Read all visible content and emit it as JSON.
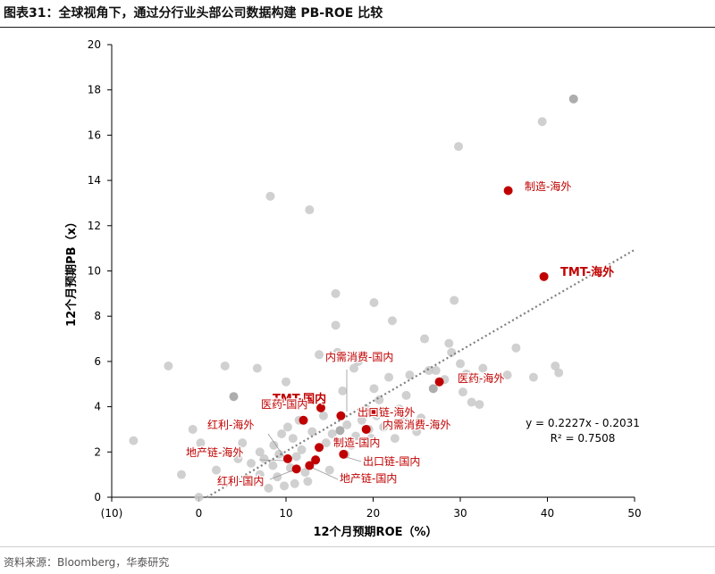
{
  "header": {
    "title": "图表31：全球视角下，通过分行业头部公司数据构建 PB-ROE 比较"
  },
  "footer": {
    "source": "资料来源：Bloomberg，华泰研究"
  },
  "colors": {
    "highlight": "#c00000",
    "background_point": "#c8c8c8",
    "background_point_dark": "#9f9f9f",
    "trendline": "#7f7f7f"
  },
  "chart_data": {
    "type": "scatter",
    "xlabel": "12个月预期ROE（%）",
    "ylabel": "12个月预期PB（x）",
    "xlim": [
      -10,
      50
    ],
    "ylim": [
      0,
      20
    ],
    "x_ticks": [
      -10,
      0,
      10,
      20,
      30,
      40,
      50
    ],
    "x_tick_labels": [
      "(10)",
      "0",
      "10",
      "20",
      "30",
      "40",
      "50"
    ],
    "y_ticks": [
      0,
      2,
      4,
      6,
      8,
      10,
      12,
      14,
      16,
      18,
      20
    ],
    "y_tick_labels": [
      "0",
      "2",
      "4",
      "6",
      "8",
      "10",
      "12",
      "14",
      "16",
      "18",
      "20"
    ],
    "grid": false,
    "trendline": {
      "slope": 0.2227,
      "intercept": -0.2031,
      "equation": "y = 0.2227x - 0.2031",
      "r_squared": "R² = 0.7508"
    },
    "background_points": [
      [
        -7.5,
        2.5
      ],
      [
        -3.5,
        5.8
      ],
      [
        -2,
        1.0
      ],
      [
        -0.7,
        3.0
      ],
      [
        0,
        0.0
      ],
      [
        0.2,
        2.4
      ],
      [
        2.0,
        1.2
      ],
      [
        3.0,
        5.8
      ],
      [
        4.0,
        4.45
      ],
      [
        4.5,
        1.7
      ],
      [
        5.0,
        2.4
      ],
      [
        5.5,
        0.8
      ],
      [
        6.0,
        1.5
      ],
      [
        6.7,
        5.7
      ],
      [
        7.0,
        1.0
      ],
      [
        7.0,
        2.0
      ],
      [
        7.5,
        1.7
      ],
      [
        8.0,
        0.4
      ],
      [
        8.2,
        13.3
      ],
      [
        8.5,
        1.4
      ],
      [
        8.6,
        2.3
      ],
      [
        9.0,
        0.9
      ],
      [
        9.2,
        1.9
      ],
      [
        9.5,
        2.8
      ],
      [
        9.8,
        0.5
      ],
      [
        10.0,
        5.1
      ],
      [
        10.2,
        3.1
      ],
      [
        10.5,
        1.3
      ],
      [
        10.8,
        2.6
      ],
      [
        11.0,
        0.6
      ],
      [
        11.2,
        1.8
      ],
      [
        11.5,
        3.4
      ],
      [
        11.8,
        2.1
      ],
      [
        12.2,
        1.1
      ],
      [
        12.5,
        0.7
      ],
      [
        12.7,
        12.7
      ],
      [
        13.0,
        2.9
      ],
      [
        13.3,
        1.6
      ],
      [
        13.8,
        6.3
      ],
      [
        14.3,
        3.6
      ],
      [
        14.6,
        2.4
      ],
      [
        15.0,
        1.2
      ],
      [
        15.3,
        2.8
      ],
      [
        15.7,
        7.6
      ],
      [
        15.7,
        9.0
      ],
      [
        15.9,
        6.4
      ],
      [
        16.2,
        2.95
      ],
      [
        16.5,
        4.7
      ],
      [
        16.8,
        1.9
      ],
      [
        17.0,
        3.2
      ],
      [
        17.5,
        2.3
      ],
      [
        17.8,
        5.7
      ],
      [
        18.0,
        2.7
      ],
      [
        18.3,
        6.0
      ],
      [
        18.7,
        3.4
      ],
      [
        19.2,
        3.9
      ],
      [
        19.5,
        3.0
      ],
      [
        19.8,
        2.6
      ],
      [
        20.1,
        4.8
      ],
      [
        20.1,
        8.6
      ],
      [
        20.4,
        3.6
      ],
      [
        20.7,
        4.3
      ],
      [
        21.0,
        6.2
      ],
      [
        21.2,
        3.1
      ],
      [
        21.8,
        5.3
      ],
      [
        22.2,
        7.8
      ],
      [
        22.5,
        2.6
      ],
      [
        23.0,
        3.9
      ],
      [
        23.5,
        3.4
      ],
      [
        23.8,
        4.5
      ],
      [
        24.2,
        5.4
      ],
      [
        25.0,
        2.9
      ],
      [
        25.5,
        3.5
      ],
      [
        25.9,
        7.0
      ],
      [
        26.4,
        5.6
      ],
      [
        26.9,
        4.8
      ],
      [
        27.2,
        5.6
      ],
      [
        28.2,
        5.2
      ],
      [
        28.7,
        6.8
      ],
      [
        29.0,
        6.4
      ],
      [
        29.3,
        8.7
      ],
      [
        29.8,
        15.5
      ],
      [
        30.0,
        5.9
      ],
      [
        30.3,
        4.65
      ],
      [
        30.7,
        5.45
      ],
      [
        31.3,
        4.2
      ],
      [
        31.9,
        5.2
      ],
      [
        32.2,
        4.1
      ],
      [
        32.6,
        5.7
      ],
      [
        33.3,
        5.3
      ],
      [
        35.4,
        5.4
      ],
      [
        36.4,
        6.6
      ],
      [
        38.4,
        5.3
      ],
      [
        39.4,
        16.6
      ],
      [
        40.9,
        5.8
      ],
      [
        41.3,
        5.5
      ],
      [
        43.0,
        17.6
      ]
    ],
    "dark_background_points": [
      [
        4.0,
        4.45
      ],
      [
        16.2,
        2.95
      ],
      [
        26.9,
        4.8
      ],
      [
        29.0,
        6.8
      ],
      [
        43.0,
        17.6
      ]
    ],
    "highlighted_points": [
      {
        "label": "制造-海外",
        "x": 35.5,
        "y": 13.55
      },
      {
        "label": "TMT-海外",
        "x": 39.6,
        "y": 9.75
      },
      {
        "label": "医药-海外",
        "x": 27.6,
        "y": 5.1
      },
      {
        "label": "TMT-国内",
        "x": 14.0,
        "y": 3.95
      },
      {
        "label": "医药-国内",
        "x": 12.0,
        "y": 3.4
      },
      {
        "label": "内需消费-国内",
        "x": 16.3,
        "y": 3.6
      },
      {
        "label": "出口链-海外",
        "x": 19.8,
        "y": 3.75
      },
      {
        "label": "内需消费-海外",
        "x": 19.2,
        "y": 3.0
      },
      {
        "label": "红利-海外",
        "x": 10.2,
        "y": 1.7
      },
      {
        "label": "制造-国内",
        "x": 13.8,
        "y": 2.2
      },
      {
        "label": "地产链-海外",
        "x": 16.6,
        "y": 1.9
      },
      {
        "label": "出口链-国内",
        "x": 13.4,
        "y": 1.65
      },
      {
        "label": "红利-国内",
        "x": 11.2,
        "y": 1.25
      },
      {
        "label": "地产链-国内",
        "x": 12.7,
        "y": 1.4
      }
    ]
  }
}
